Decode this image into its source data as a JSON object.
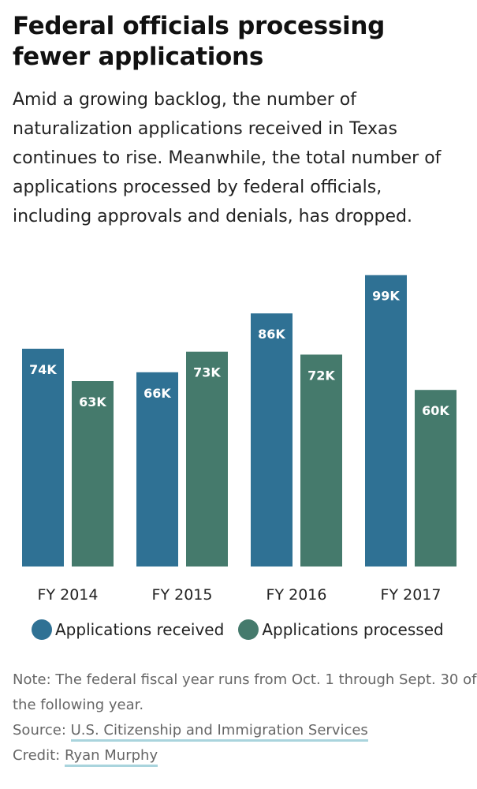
{
  "header": {
    "title": "Federal officials processing fewer applications",
    "subtitle": "Amid a growing backlog, the number of naturalization applications received in Texas continues to rise. Meanwhile, the total number of applications processed by federal officials, including approvals and denials, has dropped."
  },
  "chart_data": {
    "type": "bar",
    "title": "",
    "xlabel": "",
    "ylabel": "",
    "categories": [
      "FY 2014",
      "FY 2015",
      "FY 2016",
      "FY 2017"
    ],
    "series": [
      {
        "name": "Applications received",
        "values": [
          74,
          66,
          86,
          99
        ],
        "labels": [
          "74K",
          "66K",
          "86K",
          "99K"
        ],
        "color": "#2f7194"
      },
      {
        "name": "Applications processed",
        "values": [
          63,
          73,
          72,
          60
        ],
        "labels": [
          "63K",
          "73K",
          "72K",
          "60K"
        ],
        "color": "#457a6c"
      }
    ],
    "ylim": [
      0,
      100
    ],
    "grid": false,
    "legend": "bottom"
  },
  "footer": {
    "note_label": "Note:",
    "note_text": "The federal fiscal year runs from Oct. 1 through Sept. 30 of the following year.",
    "source_label": "Source:",
    "source_link": "U.S. Citizenship and Immigration Services",
    "credit_label": "Credit:",
    "credit_link": "Ryan Murphy"
  }
}
